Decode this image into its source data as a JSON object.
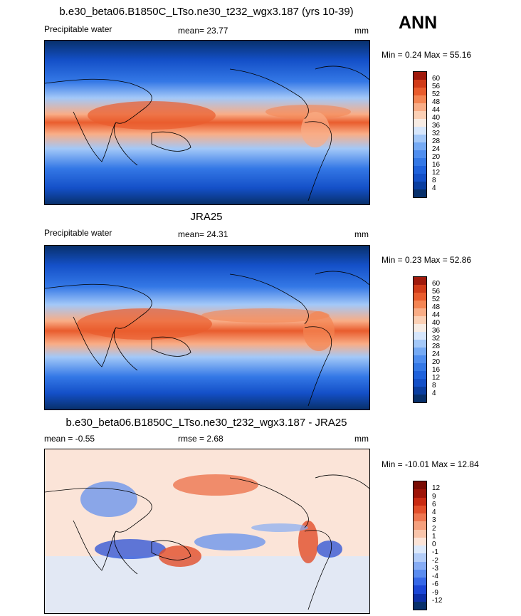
{
  "season": "ANN",
  "panels": [
    {
      "title": "b.e30_beta06.B1850C_LTso.ne30_t232_wgx3.187 (yrs 10-39)",
      "left_label": "Precipitable water",
      "center_label": "mean=  23.77",
      "units": "mm",
      "minmax": "Min =   0.24 Max =  55.16",
      "type": "field",
      "colorbar_ticks": [
        "60",
        "56",
        "52",
        "48",
        "44",
        "40",
        "36",
        "32",
        "28",
        "24",
        "20",
        "16",
        "12",
        "8",
        "4"
      ]
    },
    {
      "title": "JRA25",
      "left_label": "Precipitable water",
      "center_label": "mean=  24.31",
      "units": "mm",
      "minmax": "Min =   0.23 Max =  52.86",
      "type": "field",
      "colorbar_ticks": [
        "60",
        "56",
        "52",
        "48",
        "44",
        "40",
        "36",
        "32",
        "28",
        "24",
        "20",
        "16",
        "12",
        "8",
        "4"
      ]
    },
    {
      "title": "b.e30_beta06.B1850C_LTso.ne30_t232_wgx3.187 - JRA25",
      "left_label": "mean =  -0.55",
      "center_label": "rmse =   2.68",
      "units": "mm",
      "minmax": "Min = -10.01 Max =  12.84",
      "type": "diff",
      "colorbar_ticks": [
        "12",
        "9",
        "6",
        "4",
        "3",
        "2",
        "1",
        "0",
        "-1",
        "-2",
        "-3",
        "-4",
        "-6",
        "-9",
        "-12"
      ]
    }
  ],
  "colors": {
    "field": [
      "#08306b",
      "#0b3ea0",
      "#1450c8",
      "#1f62dc",
      "#3478e6",
      "#4f8eef",
      "#75aaf4",
      "#a3c8f8",
      "#d6e6fb",
      "#f7ece4",
      "#fbd0b5",
      "#f9ad86",
      "#f48553",
      "#e95c2d",
      "#d13b18",
      "#a01a0c"
    ],
    "diff": [
      "#08306b",
      "#0d2fa8",
      "#1b46d6",
      "#3668e8",
      "#5a8cf0",
      "#86acf4",
      "#b3cdf8",
      "#dce9fb",
      "#fbe4d8",
      "#f9c5ab",
      "#f5a07d",
      "#ee7650",
      "#e24e2a",
      "#c92a12",
      "#9e1408",
      "#7a0c04"
    ]
  }
}
